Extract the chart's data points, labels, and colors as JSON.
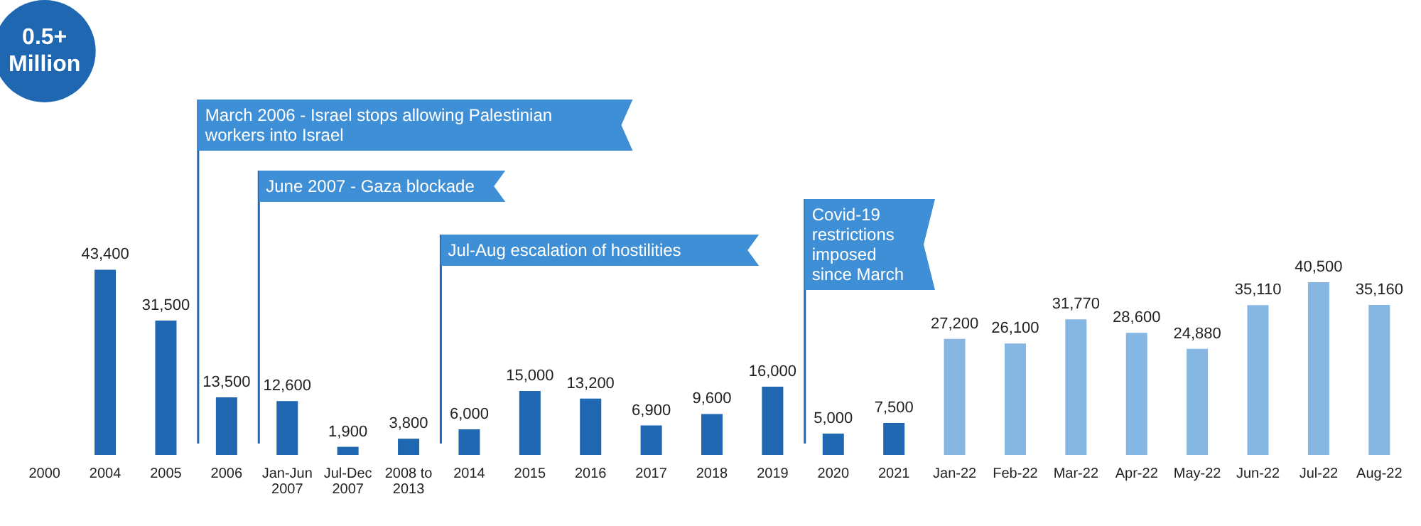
{
  "chart_data": {
    "type": "bar",
    "categories": [
      "2000",
      "2004",
      "2005",
      "2006",
      "Jan-Jun\n2007",
      "Jul-Dec\n2007",
      "2008 to\n2013",
      "2014",
      "2015",
      "2016",
      "2017",
      "2018",
      "2019",
      "2020",
      "2021",
      "Jan-22",
      "Feb-22",
      "Mar-22",
      "Apr-22",
      "May-22",
      "Jun-22",
      "Jul-22",
      "Aug-22"
    ],
    "values": [
      null,
      43400,
      31500,
      13500,
      12600,
      1900,
      3800,
      6000,
      15000,
      13200,
      6900,
      9600,
      16000,
      5000,
      7500,
      27200,
      26100,
      31770,
      28600,
      24880,
      35110,
      40500,
      35160
    ],
    "colors": [
      "#1f67b1",
      "#1f67b1",
      "#1f67b1",
      "#1f67b1",
      "#1f67b1",
      "#1f67b1",
      "#1f67b1",
      "#1f67b1",
      "#1f67b1",
      "#1f67b1",
      "#1f67b1",
      "#1f67b1",
      "#1f67b1",
      "#1f67b1",
      "#1f67b1",
      "#86b7e3",
      "#86b7e3",
      "#86b7e3",
      "#86b7e3",
      "#86b7e3",
      "#86b7e3",
      "#86b7e3",
      "#86b7e3"
    ],
    "value_labels": [
      null,
      "43,400",
      "31,500",
      "13,500",
      "12,600",
      "1,900",
      "3,800",
      "6,000",
      "15,000",
      "13,200",
      "6,900",
      "9,600",
      "16,000",
      "5,000",
      "7,500",
      "27,200",
      "26,100",
      "31,770",
      "28,600",
      "24,880",
      "35,110",
      "40,500",
      "35,160"
    ],
    "annotations": [
      "0.5+\nMillion",
      "March 2006 - Israel stops allowing Palestinian\nworkers into Israel",
      "June 2007 - Gaza blockade",
      "Jul-Aug escalation of hostilities",
      "Covid-19\nrestrictions\nimposed\nsince March"
    ]
  }
}
